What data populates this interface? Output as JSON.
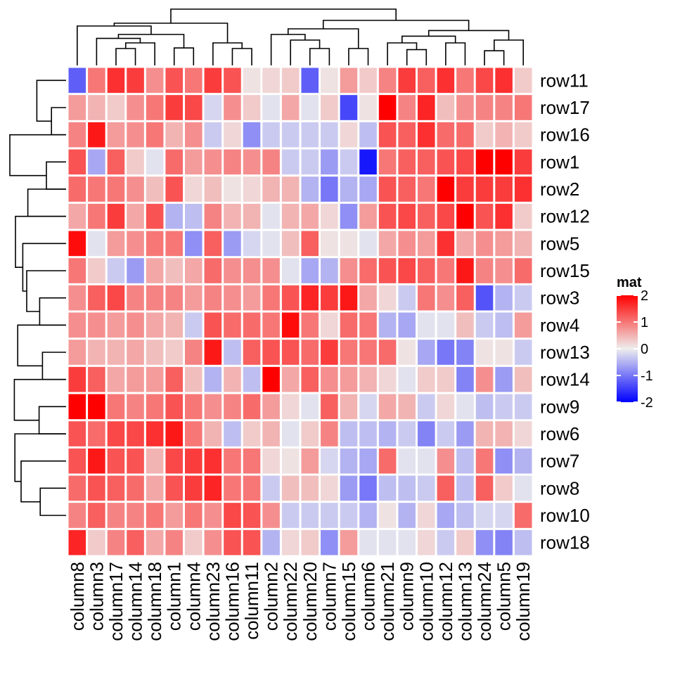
{
  "chart_data": {
    "type": "heatmap",
    "title": "",
    "rows": [
      "row11",
      "row17",
      "row16",
      "row1",
      "row2",
      "row12",
      "row5",
      "row15",
      "row3",
      "row4",
      "row13",
      "row14",
      "row9",
      "row6",
      "row7",
      "row8",
      "row10",
      "row18"
    ],
    "columns": [
      "column8",
      "column3",
      "column17",
      "column14",
      "column18",
      "column1",
      "column4",
      "column23",
      "column16",
      "column11",
      "column2",
      "column22",
      "column20",
      "column7",
      "column15",
      "column6",
      "column21",
      "column9",
      "column10",
      "column12",
      "column13",
      "column24",
      "column5",
      "column19"
    ],
    "values": [
      [
        -1.2,
        1.0,
        1.6,
        1.5,
        0.8,
        1.3,
        1.0,
        1.5,
        1.3,
        0.1,
        0.2,
        0.3,
        -1.2,
        0.1,
        0.7,
        0.3,
        0.9,
        1.5,
        1.2,
        1.6,
        1.0,
        1.4,
        1.6,
        0.3
      ],
      [
        0.7,
        0.5,
        0.3,
        0.8,
        1.0,
        1.5,
        1.4,
        -0.2,
        0.8,
        0.3,
        -0.1,
        0.6,
        -0.1,
        0.3,
        -1.4,
        0.1,
        2.2,
        0.9,
        1.7,
        0.4,
        0.8,
        0.9,
        0.9,
        1.0
      ],
      [
        0.9,
        1.8,
        0.7,
        0.8,
        1.0,
        0.5,
        0.8,
        -0.3,
        0.2,
        -0.8,
        -0.3,
        -0.3,
        -0.3,
        -0.3,
        0.2,
        -0.4,
        1.3,
        1.2,
        1.6,
        1.1,
        1.1,
        0.3,
        0.5,
        0.3
      ],
      [
        1.3,
        -0.6,
        1.2,
        0.3,
        -0.1,
        1.1,
        0.7,
        0.8,
        0.9,
        0.8,
        0.9,
        -0.3,
        -0.3,
        -0.7,
        -0.3,
        -1.8,
        1.0,
        1.2,
        1.2,
        1.3,
        1.4,
        2.0,
        2.0,
        1.5
      ],
      [
        1.1,
        1.0,
        1.0,
        0.8,
        0.4,
        1.3,
        0.2,
        0.4,
        0.1,
        0.2,
        0.5,
        0.5,
        -0.5,
        -1.0,
        -0.5,
        -0.6,
        1.3,
        1.2,
        1.0,
        2.0,
        1.5,
        1.5,
        1.5,
        1.6
      ],
      [
        0.6,
        1.0,
        1.5,
        0.6,
        1.3,
        -0.5,
        -0.4,
        0.9,
        0.5,
        0.5,
        -0.1,
        0.5,
        0.6,
        0.2,
        -0.8,
        0.7,
        1.3,
        1.4,
        1.2,
        1.4,
        2.2,
        1.3,
        1.6,
        0.3
      ],
      [
        1.9,
        -0.1,
        0.7,
        0.8,
        1.0,
        1.0,
        -0.8,
        1.2,
        -0.7,
        -0.2,
        -0.1,
        0.4,
        1.2,
        0.1,
        0.1,
        -0.1,
        0.6,
        0.8,
        0.7,
        1.6,
        0.6,
        0.8,
        0.7,
        0.5
      ],
      [
        1.0,
        0.3,
        -0.3,
        -0.7,
        0.6,
        0.4,
        0.6,
        1.1,
        0.8,
        0.8,
        0.8,
        -0.1,
        -0.6,
        -0.5,
        0.8,
        1.1,
        1.3,
        1.4,
        1.2,
        1.0,
        1.8,
        0.9,
        0.8,
        1.1
      ],
      [
        0.8,
        1.2,
        1.4,
        0.9,
        0.9,
        0.9,
        0.7,
        0.9,
        0.8,
        0.7,
        1.0,
        1.3,
        1.7,
        1.5,
        1.8,
        0.6,
        0.2,
        -0.3,
        1.0,
        0.8,
        1.2,
        -1.3,
        -0.5,
        -0.3
      ],
      [
        0.8,
        0.8,
        0.7,
        0.8,
        0.6,
        0.5,
        -0.3,
        1.3,
        1.1,
        1.1,
        1.0,
        1.9,
        1.0,
        0.2,
        1.1,
        1.0,
        -0.5,
        -0.6,
        -0.1,
        -0.1,
        0.4,
        -0.3,
        -0.4,
        0.7
      ],
      [
        0.7,
        0.5,
        0.5,
        0.6,
        0.4,
        0.3,
        0.9,
        1.8,
        -0.4,
        1.2,
        1.3,
        1.3,
        1.1,
        1.5,
        1.0,
        1.0,
        1.1,
        0.1,
        -0.6,
        -1.0,
        -0.9,
        0.1,
        0.1,
        -0.3
      ],
      [
        1.5,
        1.2,
        0.6,
        0.7,
        0.7,
        1.2,
        0.4,
        -0.5,
        0.5,
        -0.4,
        2.0,
        0.6,
        1.2,
        0.8,
        0.7,
        0.5,
        0.2,
        -0.1,
        0.3,
        0.3,
        -0.9,
        0.8,
        -0.7,
        0.4
      ],
      [
        2.0,
        2.1,
        1.0,
        0.9,
        1.0,
        1.3,
        1.0,
        0.8,
        0.9,
        1.1,
        0.7,
        0.2,
        -0.1,
        1.2,
        0.5,
        -0.2,
        0.6,
        0.5,
        -0.3,
        0.2,
        -0.1,
        -0.4,
        -0.3,
        -0.3
      ],
      [
        1.3,
        1.1,
        1.4,
        1.4,
        1.6,
        1.8,
        1.0,
        0.5,
        -0.4,
        0.3,
        0.5,
        -0.1,
        0.3,
        0.9,
        -0.4,
        -0.4,
        -0.5,
        -0.3,
        -0.9,
        -0.3,
        -0.7,
        0.5,
        0.5,
        0.2
      ],
      [
        1.3,
        1.8,
        1.3,
        1.3,
        0.5,
        1.4,
        1.5,
        1.6,
        1.0,
        1.0,
        0.2,
        0.1,
        0.7,
        -0.2,
        -0.5,
        -0.6,
        1.1,
        -0.1,
        -0.1,
        0.8,
        -0.4,
        1.0,
        -0.8,
        -0.5
      ],
      [
        1.1,
        1.3,
        1.2,
        1.1,
        0.6,
        1.3,
        1.5,
        1.7,
        1.0,
        1.0,
        -0.3,
        0.4,
        0.4,
        0.2,
        -0.7,
        -1.0,
        -0.4,
        -0.4,
        -0.3,
        1.2,
        -0.4,
        1.2,
        0.3,
        -0.1
      ],
      [
        0.9,
        1.2,
        0.9,
        0.9,
        1.0,
        0.7,
        1.0,
        0.8,
        1.4,
        1.3,
        0.8,
        -0.3,
        -0.3,
        -0.3,
        -0.3,
        -0.5,
        0.1,
        -0.5,
        0.2,
        -0.6,
        -0.4,
        -0.2,
        -0.2,
        1.1
      ],
      [
        1.7,
        0.3,
        0.9,
        1.2,
        0.6,
        0.9,
        0.3,
        0.8,
        1.3,
        1.3,
        -0.5,
        0.2,
        0.3,
        -0.8,
        0.7,
        -0.1,
        -0.1,
        -0.1,
        0.2,
        -0.3,
        0.3,
        -0.8,
        -0.9,
        -0.4
      ]
    ],
    "colorscale": [
      {
        "value": -2,
        "color": "#0000FF"
      },
      {
        "value": 0,
        "color": "#EEEEEE"
      },
      {
        "value": 2,
        "color": "#FF0000"
      }
    ],
    "legend": {
      "title": "mat",
      "ticks": [
        2,
        1,
        0,
        -1,
        -2
      ],
      "tick_labels": [
        "2",
        "1",
        "0",
        "-1",
        "-2"
      ],
      "placement": "right"
    },
    "row_dendrogram": {
      "leaves": [
        0,
        1,
        2,
        3,
        4,
        5,
        6,
        7,
        8,
        9,
        10,
        11,
        12,
        13,
        14,
        15,
        16,
        17
      ],
      "merges": [
        [
          1,
          2,
          0.26
        ],
        [
          3,
          4,
          0.35
        ],
        [
          10,
          11,
          0.42
        ],
        [
          15,
          16,
          0.46
        ],
        [
          8,
          9,
          0.47
        ],
        [
          12,
          13,
          0.48
        ],
        [
          0,
          1,
          0.52
        ],
        [
          4,
          5,
          0.68
        ],
        [
          7,
          8,
          0.7
        ],
        [
          6,
          7,
          0.77
        ],
        [
          5,
          6,
          0.9
        ],
        [
          9,
          10,
          0.86
        ],
        [
          14,
          15,
          0.8
        ],
        [
          13,
          14,
          0.91
        ],
        [
          11,
          12,
          0.92
        ],
        [
          2,
          3,
          1.0
        ]
      ]
    },
    "column_dendrogram": {
      "leaves": [
        0,
        1,
        2,
        3,
        4,
        5,
        6,
        7,
        8,
        9,
        10,
        11,
        12,
        13,
        14,
        15,
        16,
        17,
        18,
        19,
        20,
        21,
        22,
        23
      ],
      "merges": [
        [
          2,
          3,
          0.3
        ],
        [
          8,
          9,
          0.3
        ],
        [
          17,
          18,
          0.28
        ],
        [
          12,
          13,
          0.3
        ],
        [
          21,
          22,
          0.26
        ],
        [
          2,
          4,
          0.4
        ],
        [
          5,
          6,
          0.31
        ],
        [
          7,
          8,
          0.4
        ],
        [
          11,
          12,
          0.45
        ],
        [
          14,
          15,
          0.3
        ],
        [
          16,
          17,
          0.4
        ],
        [
          19,
          20,
          0.4
        ],
        [
          1,
          2,
          0.48
        ],
        [
          10,
          11,
          0.55
        ],
        [
          16,
          19,
          0.52
        ],
        [
          21,
          23,
          0.45
        ],
        [
          1,
          5,
          0.55
        ],
        [
          10,
          14,
          0.65
        ],
        [
          16,
          21,
          0.62
        ],
        [
          0,
          1,
          0.7
        ],
        [
          0,
          7,
          0.75
        ],
        [
          10,
          16,
          0.8
        ],
        [
          0,
          10,
          1.0
        ]
      ]
    }
  }
}
